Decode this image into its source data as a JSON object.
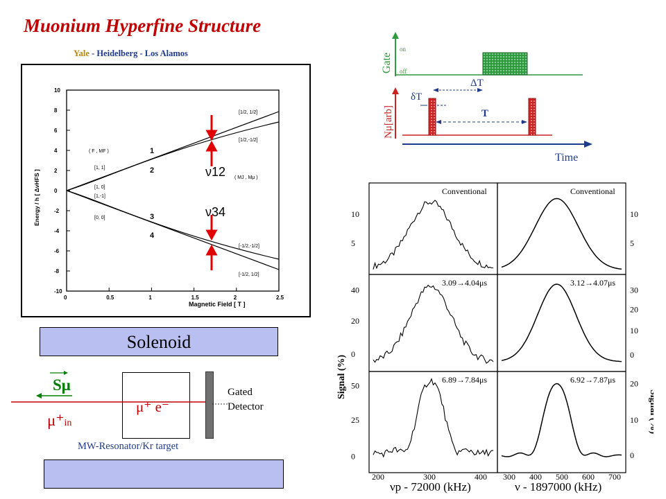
{
  "title": "Muonium Hyperfine Structure",
  "collaboration": {
    "yale": "Yale",
    "rest": " - Heidelberg  - Los Alamos"
  },
  "breit_rabi": {
    "ylabel": "Energy / h [ ΔνHFS ]",
    "xlabel": "Magnetic Field [ T ]",
    "x_ticks": [
      "0",
      "0.5",
      "1",
      "1.5",
      "2",
      "2.5"
    ],
    "y_ticks": [
      "10",
      "8",
      "6",
      "4",
      "2",
      "0",
      "-2",
      "-4",
      "-6",
      "-8",
      "-10"
    ],
    "left_header": "( F , MF )",
    "left_states": [
      "[1, 1]",
      "[1, 0]",
      "[1,-1]",
      "[0, 0]"
    ],
    "right_header": "( MJ , Mμ )",
    "right_states": [
      "[1/2, 1/2]",
      "[1/2,-1/2]",
      "[-1/2,-1/2]",
      "[-1/2, 1/2]"
    ],
    "level_numbers": [
      "1",
      "2",
      "3",
      "4"
    ],
    "transition_12": "ν12",
    "transition_34": "ν34"
  },
  "solenoid_label": "Solenoid",
  "setup": {
    "spin": "Sμ",
    "muon_in": "μ⁺",
    "muon_in_sub": "in",
    "muonium": "μ⁺ e⁻",
    "detector": [
      "Gated",
      "Detector"
    ],
    "resonator": "MW-Resonator/Kr target"
  },
  "timing": {
    "gate_label": "Gate",
    "on": "on",
    "off": "off",
    "delta_T": "ΔT",
    "delta_t": "δT",
    "T": "T",
    "n_label": "Nμ[arb]",
    "time_label": "Time"
  },
  "resonance_grid": {
    "ylabel": "Signal (%)",
    "xlabel_left": "νp - 72000 (kHz)",
    "xlabel_right": "ν - 1897000 (kHz)",
    "x_ticks_left": [
      "200",
      "300",
      "400"
    ],
    "x_ticks_right": [
      "300",
      "400",
      "500",
      "600",
      "700"
    ],
    "panels": [
      {
        "label": "Conventional",
        "yticks": [
          "10",
          "5"
        ]
      },
      {
        "label": "Conventional",
        "yticks": [
          "10",
          "5"
        ]
      },
      {
        "label": "3.09→4.04μs",
        "yticks": [
          "40",
          "20",
          "0"
        ]
      },
      {
        "label": "3.12→4.07μs",
        "yticks": [
          "30",
          "20",
          "10",
          "0"
        ]
      },
      {
        "label": "6.89→7.84μs",
        "yticks": [
          "50",
          "25",
          "0"
        ]
      },
      {
        "label": "6.92→7.87μs",
        "yticks": [
          "20",
          "10",
          "0"
        ]
      }
    ]
  },
  "colors": {
    "title": "#c00000",
    "accent_blue": "#1f3a8a",
    "gate_green": "#2e9b3e",
    "muon_red": "#cc2222",
    "box_fill": "#b9bff0"
  }
}
